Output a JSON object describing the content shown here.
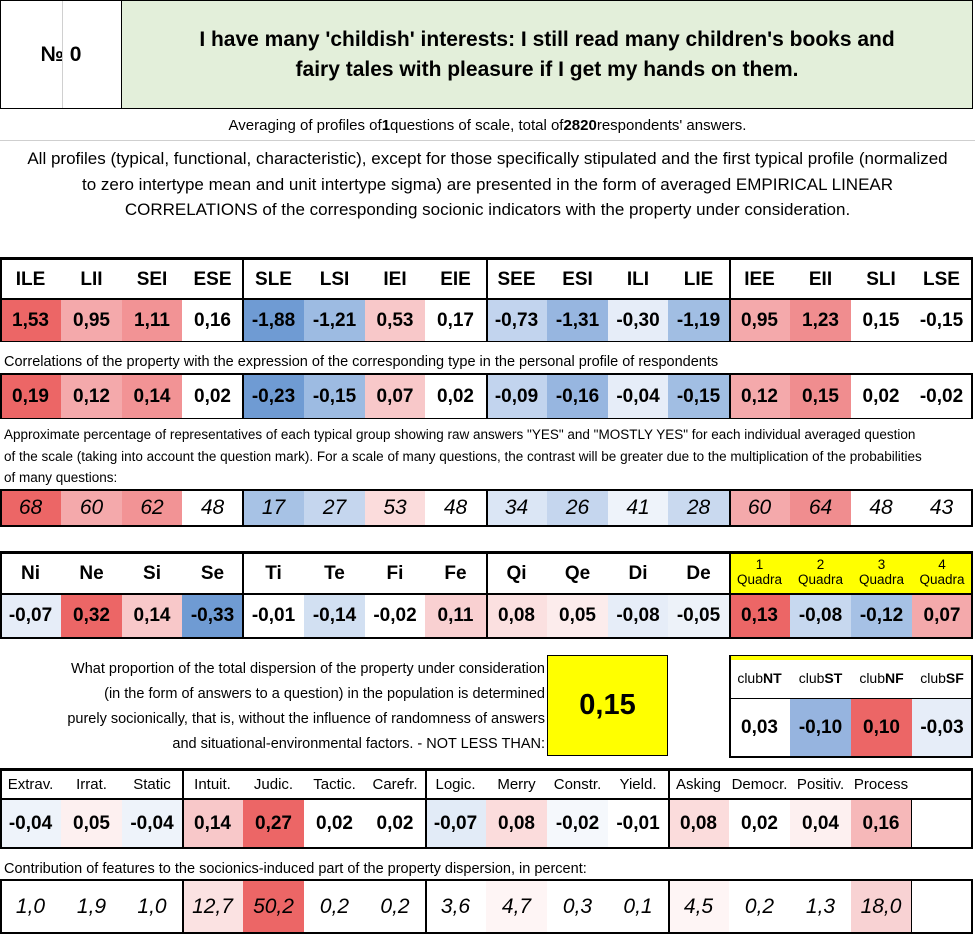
{
  "title": {
    "number_label": "№",
    "number_value": "0",
    "question": "I have many 'childish' interests: I still read many children's books and fairy tales with pleasure if I get my hands on them."
  },
  "summary": {
    "prefix": "Averaging of profiles of ",
    "questions_count": "1",
    "middle": " questions of scale, total of ",
    "respondents": "2820",
    "suffix": " respondents' answers."
  },
  "intro": "All profiles (typical, functional, characteristic), except for those specifically stipulated and the first typical profile (normalized to zero intertype mean and unit intertype sigma) are presented in the form of averaged EMPIRICAL LINEAR CORRELATIONS of the corresponding socionic indicators with the property under consideration.",
  "types": {
    "headers": [
      "ILE",
      "LII",
      "SEI",
      "ESE",
      "SLE",
      "LSI",
      "IEI",
      "EIE",
      "SEE",
      "ESI",
      "ILI",
      "LIE",
      "IEE",
      "EII",
      "SLI",
      "LSE"
    ],
    "profile": [
      "1,53",
      "0,95",
      "1,11",
      "0,16",
      "-1,88",
      "-1,21",
      "0,53",
      "0,17",
      "-0,73",
      "-1,31",
      "-0,30",
      "-1,19",
      "0,95",
      "1,23",
      "0,15",
      "-0,15"
    ],
    "profile_colors": [
      "#ec6666",
      "#f4a9ab",
      "#f29395",
      "#ffffff",
      "#6f9bd3",
      "#9dbbe2",
      "#f8c8c9",
      "#ffffff",
      "#c2d4ee",
      "#97b6e0",
      "#e6edf8",
      "#a1bee3",
      "#f4a9ab",
      "#f08d8f",
      "#ffffff",
      "#ffffff"
    ],
    "corr_caption": "Correlations of the property with the expression of the corresponding type in the personal profile of respondents",
    "correlations": [
      "0,19",
      "0,12",
      "0,14",
      "0,02",
      "-0,23",
      "-0,15",
      "0,07",
      "0,02",
      "-0,09",
      "-0,16",
      "-0,04",
      "-0,15",
      "0,12",
      "0,15",
      "0,02",
      "-0,02"
    ],
    "corr_colors": [
      "#ec6666",
      "#f4a9ab",
      "#f29395",
      "#ffffff",
      "#6f9bd3",
      "#9dbbe2",
      "#f8c8c9",
      "#ffffff",
      "#c2d4ee",
      "#97b6e0",
      "#e6edf8",
      "#a1bee3",
      "#f4a9ab",
      "#f08d8f",
      "#ffffff",
      "#ffffff"
    ],
    "pct_caption": "Approximate percentage of representatives of each typical group showing raw answers \"YES\" and \"MOSTLY YES\" for each individual averaged question of the scale (taking into account the question mark). For a scale of many questions, the contrast will be greater due to the multiplication of the probabilities of many questions:",
    "percentages": [
      "68",
      "60",
      "62",
      "48",
      "17",
      "27",
      "53",
      "48",
      "34",
      "26",
      "41",
      "28",
      "60",
      "64",
      "48",
      "43"
    ],
    "pct_colors": [
      "#ec6666",
      "#f4a9ab",
      "#f29395",
      "#ffffff",
      "#a7c2e5",
      "#c5d6ee",
      "#fbdcdc",
      "#ffffff",
      "#dbe6f5",
      "#c5d6ee",
      "#eef3fa",
      "#c9d9ef",
      "#f4a9ab",
      "#f08d8f",
      "#ffffff",
      "#ffffff"
    ]
  },
  "functions": {
    "headers": [
      "Ni",
      "Ne",
      "Si",
      "Se",
      "Ti",
      "Te",
      "Fi",
      "Fe",
      "Qi",
      "Qe",
      "Di",
      "De"
    ],
    "values": [
      "-0,07",
      "0,32",
      "0,14",
      "-0,33",
      "-0,01",
      "-0,14",
      "-0,02",
      "0,11",
      "0,08",
      "0,05",
      "-0,08",
      "-0,05"
    ],
    "colors": [
      "#e6edf8",
      "#ec6666",
      "#f8c8c9",
      "#6f9bd3",
      "#ffffff",
      "#d2e0f2",
      "#ffffff",
      "#f9d0d1",
      "#fbe0e0",
      "#fcecec",
      "#e6edf8",
      "#edf2f9"
    ]
  },
  "quadras": {
    "labels": [
      {
        "num": "1",
        "word": "Quadra"
      },
      {
        "num": "2",
        "word": "Quadra"
      },
      {
        "num": "3",
        "word": "Quadra"
      },
      {
        "num": "4",
        "word": "Quadra"
      }
    ],
    "values": [
      "0,13",
      "-0,08",
      "-0,12",
      "0,07"
    ],
    "colors": [
      "#ec6666",
      "#c7d8ef",
      "#a6c1e5",
      "#f4a9ab"
    ],
    "header_color": "#ffff00"
  },
  "dispersion": {
    "text_lines": [
      "What proportion of the total dispersion of the property under consideration",
      "(in the form of answers to a question) in the population is determined",
      "purely socionically, that is, without the influence of randomness of answers",
      "and situational-environmental factors. - NOT LESS THAN:"
    ],
    "value": "0,15",
    "box_color": "#ffff00"
  },
  "clubs": {
    "labels": [
      {
        "prefix": "club",
        "suffix": "NT"
      },
      {
        "prefix": "club",
        "suffix": "ST"
      },
      {
        "prefix": "club",
        "suffix": "NF"
      },
      {
        "prefix": "club",
        "suffix": "SF"
      }
    ],
    "values": [
      "0,03",
      "-0,10",
      "0,10",
      "-0,03"
    ],
    "colors": [
      "#ffffff",
      "#96b4df",
      "#ec6666",
      "#e6edf8"
    ]
  },
  "traits": {
    "headers": [
      "Extrav.",
      "Irrat.",
      "Static",
      "Intuit.",
      "Judic.",
      "Tactic.",
      "Carefr.",
      "Logic.",
      "Merry",
      "Constr.",
      "Yield.",
      "Asking",
      "Democr.",
      "Positiv.",
      "Process"
    ],
    "values": [
      "-0,04",
      "0,05",
      "-0,04",
      "0,14",
      "0,27",
      "0,02",
      "0,02",
      "-0,07",
      "0,08",
      "-0,02",
      "-0,01",
      "0,08",
      "0,02",
      "0,04",
      "0,16"
    ],
    "colors": [
      "#eef3fa",
      "#fdf0f0",
      "#eef3fa",
      "#f8c8c9",
      "#ec6666",
      "#ffffff",
      "#ffffff",
      "#e2ebf7",
      "#fbdcdc",
      "#f5f8fc",
      "#ffffff",
      "#fbdcdc",
      "#ffffff",
      "#fdf0f0",
      "#f6b8b9"
    ],
    "contrib_caption": "Contribution of features to the socionics-induced part of the property dispersion, in percent:",
    "contributions": [
      "1,0",
      "1,9",
      "1,0",
      "12,7",
      "50,2",
      "0,2",
      "0,2",
      "3,6",
      "4,7",
      "0,3",
      "0,1",
      "4,5",
      "0,2",
      "1,3",
      "18,0"
    ],
    "contrib_colors": [
      "#ffffff",
      "#ffffff",
      "#ffffff",
      "#fbe2e2",
      "#ec6666",
      "#ffffff",
      "#ffffff",
      "#ffffff",
      "#fef5f5",
      "#ffffff",
      "#ffffff",
      "#fef5f5",
      "#ffffff",
      "#ffffff",
      "#f8d2d3"
    ]
  }
}
